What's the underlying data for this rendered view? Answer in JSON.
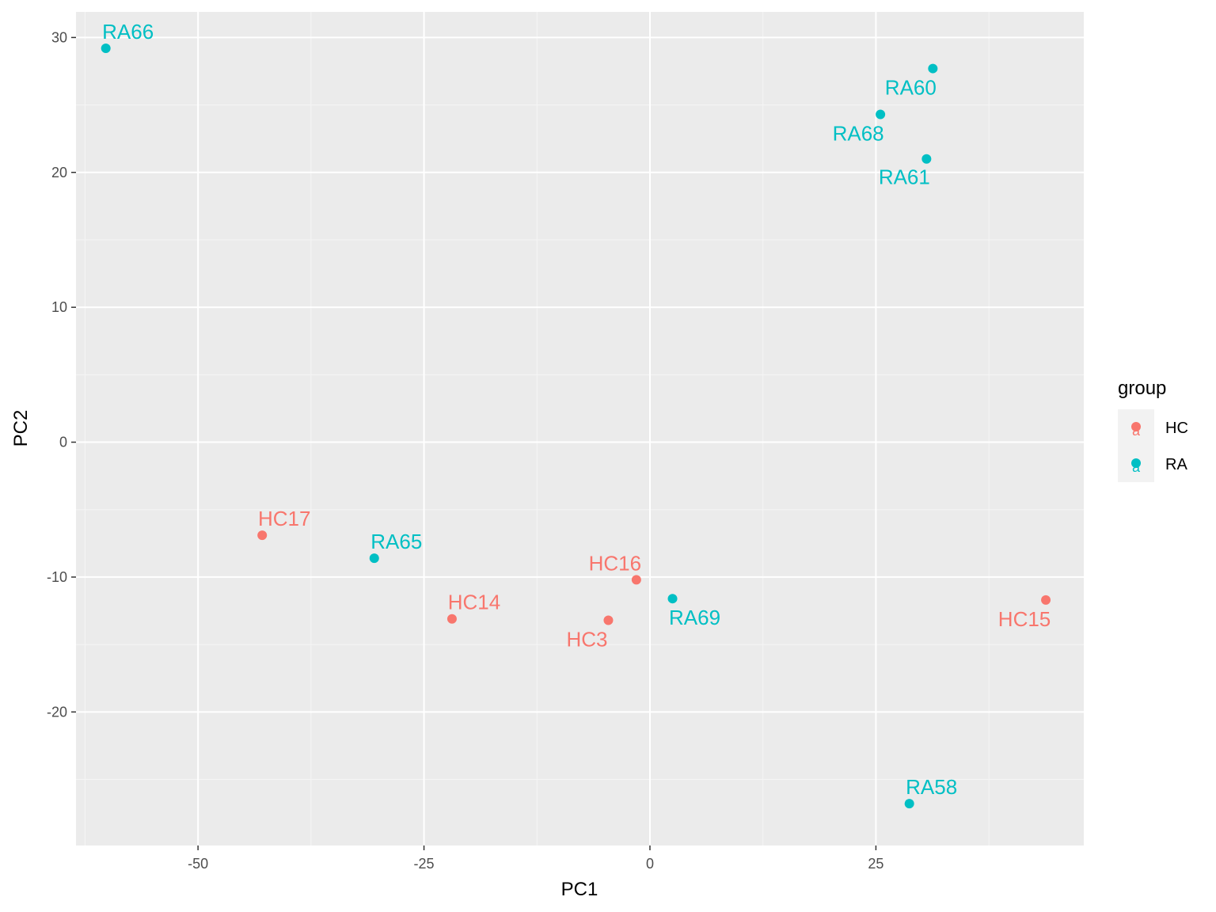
{
  "chart_data": {
    "type": "scatter",
    "xlabel": "PC1",
    "ylabel": "PC2",
    "xlim": [
      -63.5,
      48.0
    ],
    "ylim": [
      -29.9,
      31.9
    ],
    "x_ticks": [
      -50,
      -25,
      0,
      25
    ],
    "y_ticks": [
      -20,
      -10,
      0,
      10,
      20,
      30
    ],
    "grid": true,
    "legend": {
      "title": "group",
      "position": "right",
      "entries": [
        {
          "label": "HC",
          "color": "#F8766D"
        },
        {
          "label": "RA",
          "color": "#00BFC4"
        }
      ]
    },
    "points": [
      {
        "label": "RA66",
        "group": "RA",
        "x": -60.2,
        "y": 29.2
      },
      {
        "label": "RA60",
        "group": "RA",
        "x": 31.3,
        "y": 27.7
      },
      {
        "label": "RA68",
        "group": "RA",
        "x": 25.5,
        "y": 24.3
      },
      {
        "label": "RA61",
        "group": "RA",
        "x": 30.6,
        "y": 21.0
      },
      {
        "label": "HC17",
        "group": "HC",
        "x": -42.9,
        "y": -6.9
      },
      {
        "label": "RA65",
        "group": "RA",
        "x": -30.5,
        "y": -8.6
      },
      {
        "label": "HC16",
        "group": "HC",
        "x": -1.5,
        "y": -10.2
      },
      {
        "label": "RA69",
        "group": "RA",
        "x": 2.5,
        "y": -11.6
      },
      {
        "label": "HC14",
        "group": "HC",
        "x": -21.9,
        "y": -13.1
      },
      {
        "label": "HC3",
        "group": "HC",
        "x": -4.6,
        "y": -13.2
      },
      {
        "label": "HC15",
        "group": "HC",
        "x": 43.8,
        "y": -11.7
      },
      {
        "label": "RA58",
        "group": "RA",
        "x": 28.7,
        "y": -26.8
      }
    ]
  }
}
